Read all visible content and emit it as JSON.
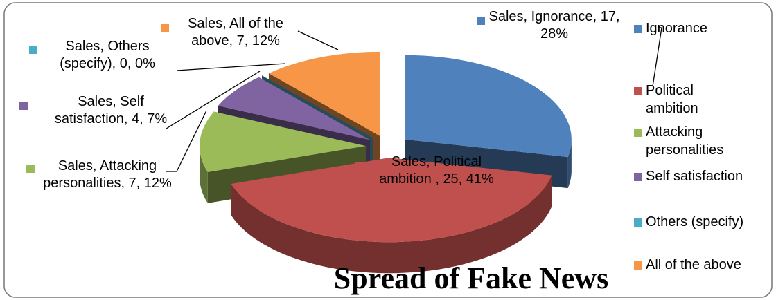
{
  "chart_data": {
    "type": "pie3d",
    "title": "Spread of Fake News",
    "categories": [
      "Ignorance",
      "Political ambition",
      "Attacking personalities",
      "Self satisfaction",
      "Others (specify)",
      "All of the above"
    ],
    "series": [
      {
        "name": "Sales",
        "values": [
          17,
          25,
          7,
          4,
          0,
          7
        ],
        "value_labels": [
          "Sales, Ignorance, 17, 28%",
          "Sales, Political ambition , 25, 41%",
          "Sales, Attacking personalities, 7, 12%",
          "Sales, Self satisfaction, 4, 7%",
          "Sales, Others (specify), 0, 0%",
          "Sales, All of the above, 7, 12%"
        ]
      }
    ],
    "colors": [
      "#4f81bd",
      "#c0504d",
      "#9bbb59",
      "#8064a2",
      "#4bacc6",
      "#f79646"
    ],
    "legend": "right"
  }
}
